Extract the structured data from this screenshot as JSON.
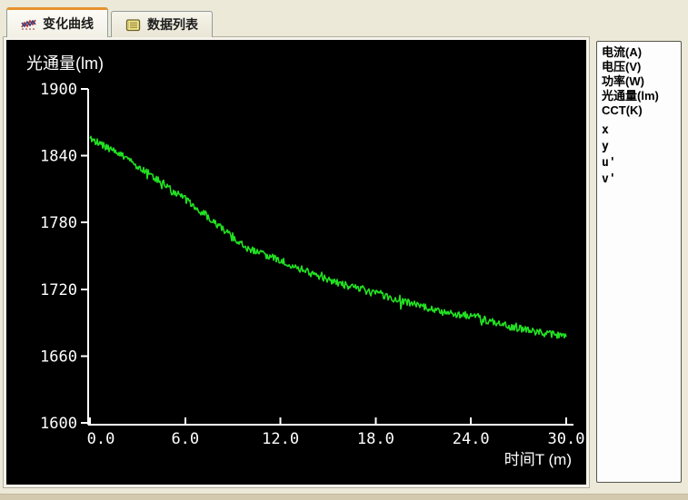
{
  "tabs": [
    {
      "label": "变化曲线",
      "icon": "curve-chart-icon",
      "active": true
    },
    {
      "label": "数据列表",
      "icon": "data-list-icon",
      "active": false
    }
  ],
  "legend_panel": {
    "items": [
      "电流(A)",
      "电压(V)",
      "功率(W)",
      "光通量(lm)",
      "CCT(K)",
      "x",
      "y",
      "u'",
      "v'"
    ]
  },
  "chart_data": {
    "type": "line",
    "title": "光通量(lm)",
    "xlabel": "时间T (m)",
    "ylabel": "光通量(lm)",
    "xlim": [
      0,
      30
    ],
    "ylim": [
      1600,
      1900
    ],
    "x_ticks": [
      "0.0",
      "6.0",
      "12.0",
      "18.0",
      "24.0",
      "30.0"
    ],
    "x_tick_values": [
      0,
      6,
      12,
      18,
      24,
      30
    ],
    "y_ticks": [
      "1900",
      "1840",
      "1780",
      "1720",
      "1660",
      "1600"
    ],
    "y_tick_values": [
      1900,
      1840,
      1780,
      1720,
      1660,
      1600
    ],
    "grid": false,
    "background_color": "#000000",
    "axis_color": "#ffffff",
    "text_color": "#ffffff",
    "series": [
      {
        "name": "光通量(lm)",
        "color": "#22e022",
        "x": [
          0,
          2,
          4,
          6,
          8,
          10,
          12,
          14,
          16,
          18,
          20,
          22,
          24,
          26,
          28,
          30
        ],
        "values": [
          1856,
          1840,
          1821,
          1801,
          1778,
          1756,
          1746,
          1734,
          1724,
          1716,
          1708,
          1700,
          1696,
          1688,
          1682,
          1677
        ],
        "noise_amplitude": 3.2,
        "spike_probability": 0.07,
        "spike_extra": 6,
        "seed": 20240601
      }
    ]
  }
}
